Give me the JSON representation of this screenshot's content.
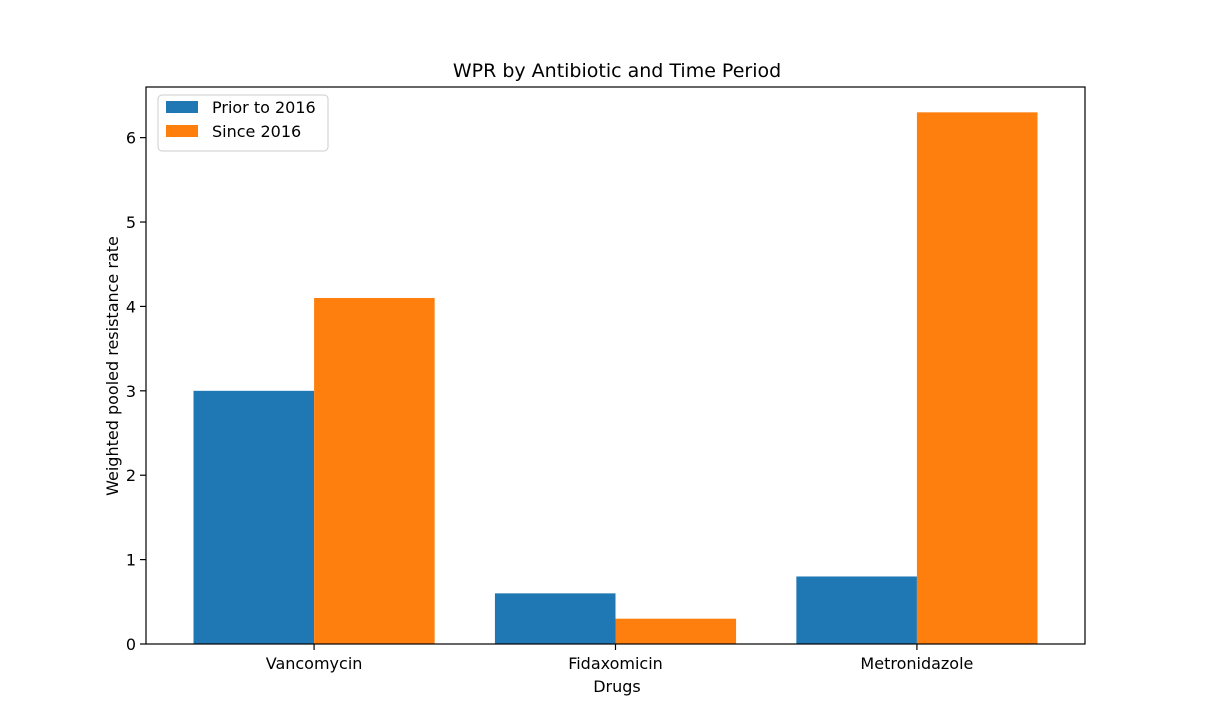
{
  "chart_data": {
    "type": "bar",
    "title": "WPR by Antibiotic and Time Period",
    "xlabel": "Drugs",
    "ylabel": "Weighted pooled resistance rate",
    "categories": [
      "Vancomycin",
      "Fidaxomicin",
      "Metronidazole"
    ],
    "series": [
      {
        "name": "Prior to 2016",
        "color": "#1f77b4",
        "values": [
          3.0,
          0.6,
          0.8
        ]
      },
      {
        "name": "Since 2016",
        "color": "#ff7f0e",
        "values": [
          4.1,
          0.3,
          6.3
        ]
      }
    ],
    "ylim": [
      0,
      6.6
    ],
    "yticks": [
      0,
      1,
      2,
      3,
      4,
      5,
      6
    ],
    "grid": false,
    "legend_position": "top-left"
  }
}
